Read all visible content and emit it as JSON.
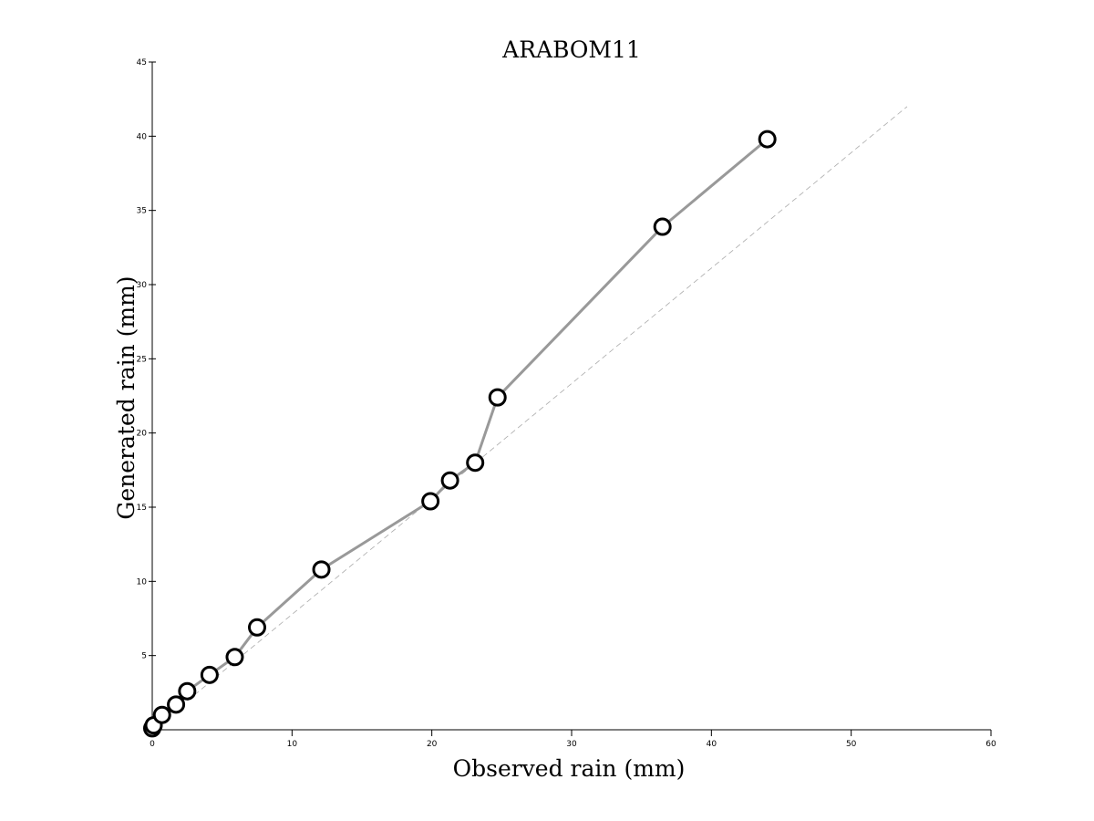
{
  "chart_data": {
    "type": "line",
    "title": "ARABOM11",
    "xlabel": "Observed rain (mm)",
    "ylabel": "Generated rain (mm)",
    "xlim": [
      0,
      60
    ],
    "ylim": [
      0,
      45
    ],
    "xticks": [
      "0",
      "10",
      "20",
      "30",
      "40",
      "50",
      "60"
    ],
    "yticks": [
      "5",
      "10",
      "15",
      "20",
      "25",
      "30",
      "35",
      "40",
      "45"
    ],
    "grid": false,
    "series": [
      {
        "style": "solid",
        "color": "#999999",
        "marker": "open-circle",
        "marker_color": "#000000",
        "x": [
          0.0,
          0.1,
          0.7,
          1.7,
          2.5,
          4.1,
          5.9,
          7.5,
          12.1,
          19.9,
          21.3,
          23.1,
          24.7,
          36.5,
          44.0
        ],
        "y": [
          0.1,
          0.3,
          1.0,
          1.7,
          2.6,
          3.7,
          4.9,
          6.9,
          10.8,
          15.4,
          16.8,
          18.0,
          22.4,
          33.9,
          39.8
        ]
      },
      {
        "style": "dashed",
        "color": "#aaaaaa",
        "x": [
          0,
          54
        ],
        "y": [
          0,
          42
        ]
      }
    ]
  },
  "colors": {
    "axis": "#000000",
    "series_line": "#999999",
    "reference_line": "#aaaaaa"
  }
}
